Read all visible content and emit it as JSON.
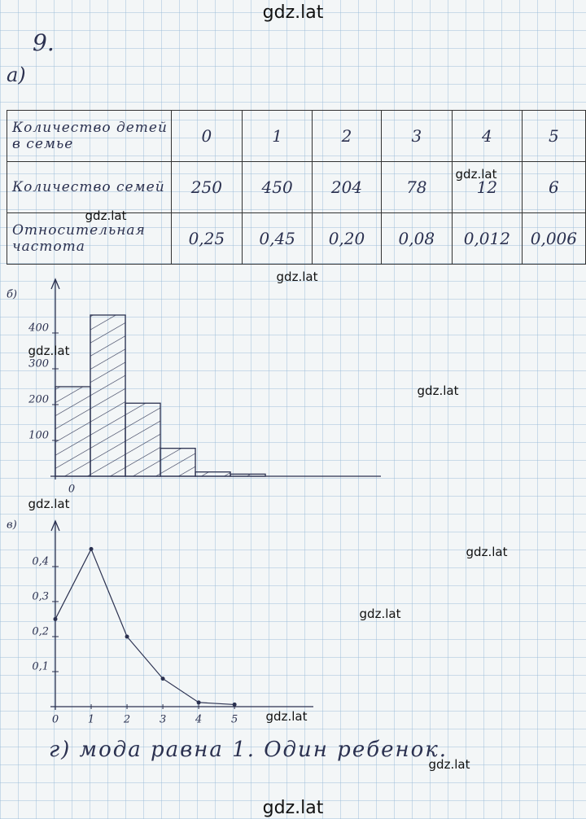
{
  "header": {
    "number": "9.",
    "part_a": "а)"
  },
  "table": {
    "rows": [
      [
        "Количество детей в семье",
        "0",
        "1",
        "2",
        "3",
        "4",
        "5"
      ],
      [
        "Количество семей",
        "250",
        "450",
        "204",
        "78",
        "12",
        "6"
      ],
      [
        "Относительная частота",
        "0,25",
        "0,45",
        "0,20",
        "0,08",
        "0,012",
        "0,006"
      ]
    ]
  },
  "chart_data": [
    {
      "type": "histogram",
      "title": "б)",
      "bins": [
        0,
        1,
        2,
        3,
        4,
        5,
        6
      ],
      "values": [
        250,
        450,
        204,
        78,
        12,
        6
      ],
      "xlim": [
        0,
        9.3
      ],
      "ylim": [
        0,
        550
      ],
      "xticks": [
        0
      ],
      "yticks": [
        100,
        200,
        300,
        400
      ],
      "color": "#2b3150"
    },
    {
      "type": "line",
      "title": "в)",
      "x": [
        0,
        1,
        2,
        3,
        4,
        5
      ],
      "values": [
        0.25,
        0.45,
        0.2,
        0.08,
        0.012,
        0.006
      ],
      "xlim": [
        0,
        7.2
      ],
      "ylim": [
        0,
        0.53
      ],
      "xticks": [
        0,
        1,
        2,
        3,
        4,
        5
      ],
      "yticks": [
        {
          "value": 0.1,
          "label": "0,1"
        },
        {
          "value": 0.2,
          "label": "0,2"
        },
        {
          "value": 0.3,
          "label": "0,3"
        },
        {
          "value": 0.4,
          "label": "0,4"
        }
      ],
      "color": "#2b3150"
    }
  ],
  "answer": "г) мода равна 1. Один ребенок.",
  "watermarks": [
    "gdz.lat",
    "gdz.lat",
    "gdz.lat",
    "gdz.lat",
    "gdz.lat",
    "gdz.lat",
    "gdz.lat",
    "gdz.lat",
    "gdz.lat",
    "gdz.lat",
    "gdz.lat",
    "gdz.lat"
  ]
}
